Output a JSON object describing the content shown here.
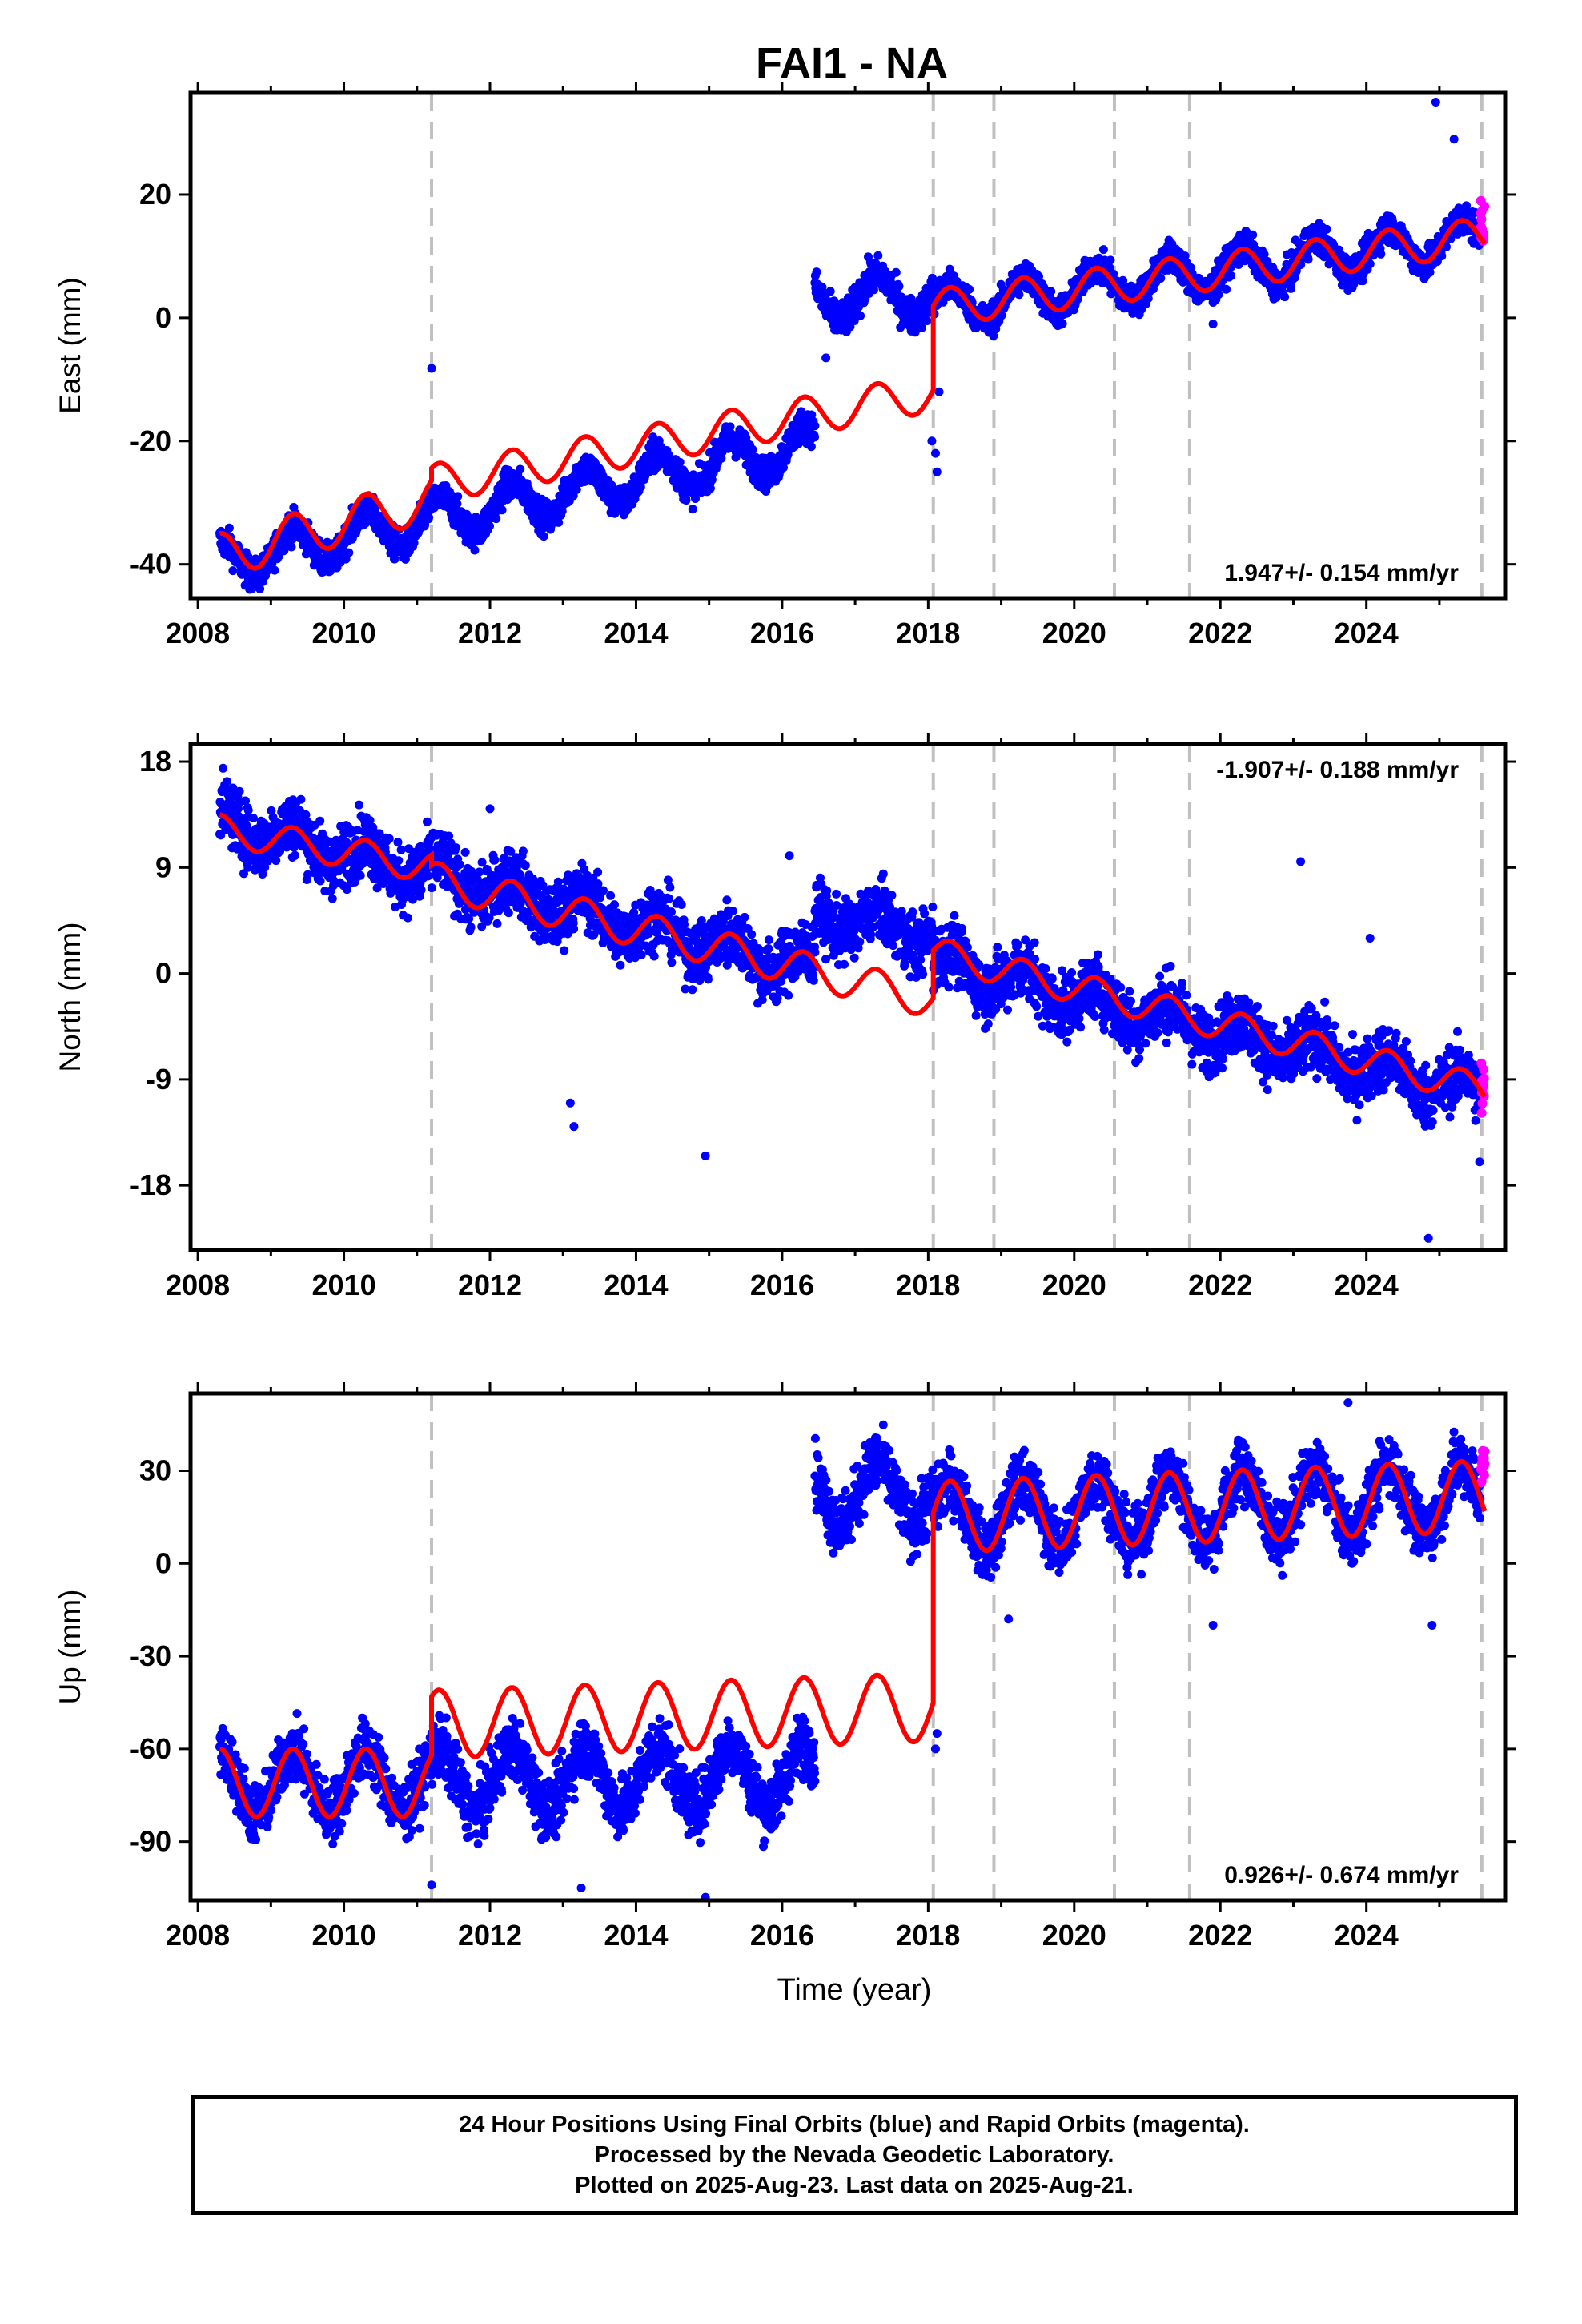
{
  "chart_data": {
    "type": "scatter",
    "title": "FAI1 - NA",
    "xlabel": "Time (year)",
    "x_range": [
      2007.9,
      2025.9
    ],
    "x_ticks": [
      "2008",
      "2010",
      "2012",
      "2014",
      "2016",
      "2018",
      "2020",
      "2022",
      "2024"
    ],
    "grid": false,
    "event_lines_year": [
      2011.2,
      2018.07,
      2018.9,
      2020.55,
      2021.58,
      2025.58
    ],
    "series_colors": {
      "final_orbits": "#0000ff",
      "rapid_orbits": "#ff00ff",
      "model": "#ff0000",
      "event_lines": "#c0c0c0"
    },
    "panels": [
      {
        "ylabel": "East (mm)",
        "ylim": [
          -45.5,
          36.5
        ],
        "yticks": [
          "-40",
          "-20",
          "0",
          "20"
        ],
        "rate": "1.947+/- 0.154 mm/yr",
        "rate_position": "bottom-right",
        "model": {
          "segments": [
            {
              "start": 2008.3,
              "end": 2011.2,
              "offset": -38.6,
              "trend": 3.2,
              "annual_amp": 3.6
            },
            {
              "start": 2011.2,
              "end": 2018.07,
              "offset": -26.9,
              "trend": 2.15,
              "annual_amp": 3.1
            },
            {
              "start": 2018.07,
              "end": 2025.62,
              "offset": 1.6,
              "trend": 1.55,
              "annual_amp": 3.0
            }
          ]
        },
        "observations": [
          {
            "start": 2008.3,
            "end": 2016.45,
            "offset": -39.6,
            "trend": 2.35,
            "annual_amp": 3.4,
            "spread": 1.8
          },
          {
            "start": 2016.45,
            "end": 2018.07,
            "offset": 3.0,
            "trend": 0.6,
            "annual_amp": 3.5,
            "spread": 2.0
          },
          {
            "start": 2018.07,
            "end": 2025.56,
            "offset": 1.6,
            "trend": 1.55,
            "annual_amp": 3.2,
            "spread": 1.8
          }
        ],
        "outliers": [
          [
            2011.2,
            -8.2
          ],
          [
            2018.1,
            -22.0
          ],
          [
            2018.12,
            -25.0
          ],
          [
            2018.05,
            -20.0
          ],
          [
            2021.9,
            -1.0
          ],
          [
            2024.95,
            35.0
          ],
          [
            2025.2,
            29.0
          ],
          [
            2016.6,
            -6.5
          ],
          [
            2018.15,
            -12.0
          ]
        ],
        "rapid": {
          "start": 2025.56,
          "end": 2025.62,
          "min": 12,
          "max": 19.5
        }
      },
      {
        "ylabel": "North (mm)",
        "ylim": [
          -23.5,
          19.5
        ],
        "yticks": [
          "-18",
          "-9",
          "0",
          "9",
          "18"
        ],
        "rate": "-1.907+/- 0.188 mm/yr",
        "rate_position": "top-right",
        "model": {
          "segments": [
            {
              "start": 2008.3,
              "end": 2011.2,
              "offset": 12.2,
              "trend": -1.1,
              "annual_amp": 1.3
            },
            {
              "start": 2011.2,
              "end": 2018.07,
              "offset": 8.0,
              "trend": -1.5,
              "annual_amp": 1.5
            },
            {
              "start": 2018.07,
              "end": 2025.62,
              "offset": 1.8,
              "trend": -1.55,
              "annual_amp": 1.3
            }
          ]
        },
        "observations": [
          {
            "start": 2008.3,
            "end": 2016.45,
            "offset": 13.0,
            "trend": -1.55,
            "annual_amp": 1.3,
            "spread": 1.9
          },
          {
            "start": 2016.45,
            "end": 2018.07,
            "offset": 5.0,
            "trend": -1.0,
            "annual_amp": 1.2,
            "spread": 1.8
          },
          {
            "start": 2018.07,
            "end": 2025.56,
            "offset": 1.0,
            "trend": -1.5,
            "annual_amp": 1.3,
            "spread": 1.9
          }
        ],
        "outliers": [
          [
            2014.95,
            -15.5
          ],
          [
            2013.1,
            -11.0
          ],
          [
            2013.15,
            -13.0
          ],
          [
            2024.85,
            -22.5
          ],
          [
            2012.0,
            14.0
          ],
          [
            2023.1,
            9.5
          ],
          [
            2016.1,
            10.0
          ],
          [
            2025.55,
            -16.0
          ],
          [
            2024.05,
            3.0
          ]
        ],
        "rapid": {
          "start": 2025.56,
          "end": 2025.62,
          "min": -12.5,
          "max": -7.5
        }
      },
      {
        "ylabel": "Up (mm)",
        "ylim": [
          -109,
          55
        ],
        "yticks": [
          "-90",
          "-60",
          "-30",
          "0",
          "30"
        ],
        "rate": "0.926+/- 0.674 mm/yr",
        "rate_position": "bottom-right",
        "model": {
          "segments": [
            {
              "start": 2008.3,
              "end": 2011.2,
              "offset": -71.0,
              "trend": 0.0,
              "annual_amp": 11.0
            },
            {
              "start": 2011.2,
              "end": 2018.07,
              "offset": -52.0,
              "trend": 0.8,
              "annual_amp": 11.0
            },
            {
              "start": 2018.07,
              "end": 2025.62,
              "offset": 15.0,
              "trend": 0.9,
              "annual_amp": 11.5
            }
          ]
        },
        "observations": [
          {
            "start": 2008.3,
            "end": 2016.45,
            "offset": -71.0,
            "trend": 0.3,
            "annual_amp": 10.0,
            "spread": 7.0
          },
          {
            "start": 2016.45,
            "end": 2018.07,
            "offset": 23.0,
            "trend": 0.0,
            "annual_amp": 10.0,
            "spread": 7.0
          },
          {
            "start": 2018.07,
            "end": 2025.56,
            "offset": 15.0,
            "trend": 0.9,
            "annual_amp": 11.0,
            "spread": 7.0
          }
        ],
        "outliers": [
          [
            2011.2,
            -104.0
          ],
          [
            2013.25,
            -105.0
          ],
          [
            2014.95,
            -108.0
          ],
          [
            2023.75,
            52.0
          ],
          [
            2024.9,
            -20.0
          ],
          [
            2021.9,
            -20.0
          ],
          [
            2018.1,
            -60.0
          ],
          [
            2018.12,
            -55.0
          ],
          [
            2019.1,
            -18.0
          ]
        ],
        "rapid": {
          "start": 2025.56,
          "end": 2025.62,
          "min": 26,
          "max": 37
        }
      }
    ]
  },
  "caption": {
    "line1": "24 Hour Positions Using Final Orbits (blue) and Rapid Orbits (magenta).",
    "line2": "Processed by the Nevada Geodetic Laboratory.",
    "line3": "Plotted on 2025-Aug-23. Last data on 2025-Aug-21."
  }
}
